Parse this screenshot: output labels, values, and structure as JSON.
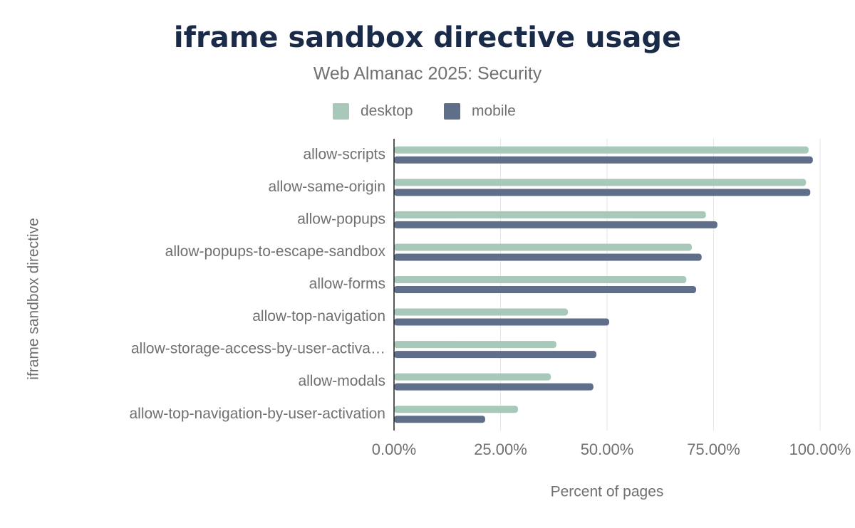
{
  "chart_data": {
    "type": "bar",
    "orientation": "horizontal",
    "title": "iframe sandbox directive usage",
    "subtitle": "Web Almanac 2025: Security",
    "y_label": "iframe sandbox directive",
    "x_label": "Percent of pages",
    "categories": [
      "allow-scripts",
      "allow-same-origin",
      "allow-popups",
      "allow-popups-to-escape-sandbox",
      "allow-forms",
      "allow-top-navigation",
      "allow-storage-access-by-user-activa…",
      "allow-modals",
      "allow-top-navigation-by-user-activation"
    ],
    "series": [
      {
        "name": "desktop",
        "color": "#a8c8b9",
        "values": [
          97.3,
          96.7,
          73.2,
          69.9,
          68.6,
          40.8,
          38.1,
          36.8,
          29.1
        ]
      },
      {
        "name": "mobile",
        "color": "#5f6f89",
        "values": [
          98.3,
          97.7,
          75.9,
          72.2,
          70.9,
          50.5,
          47.5,
          46.8,
          21.4
        ]
      }
    ],
    "xlim": [
      0,
      100
    ],
    "xticks": [
      {
        "value": 0,
        "label": "0.00%"
      },
      {
        "value": 25,
        "label": "25.00%"
      },
      {
        "value": 50,
        "label": "50.00%"
      },
      {
        "value": 75,
        "label": "75.00%"
      },
      {
        "value": 100,
        "label": "100.00%"
      }
    ],
    "grid": true,
    "legend": "top"
  }
}
